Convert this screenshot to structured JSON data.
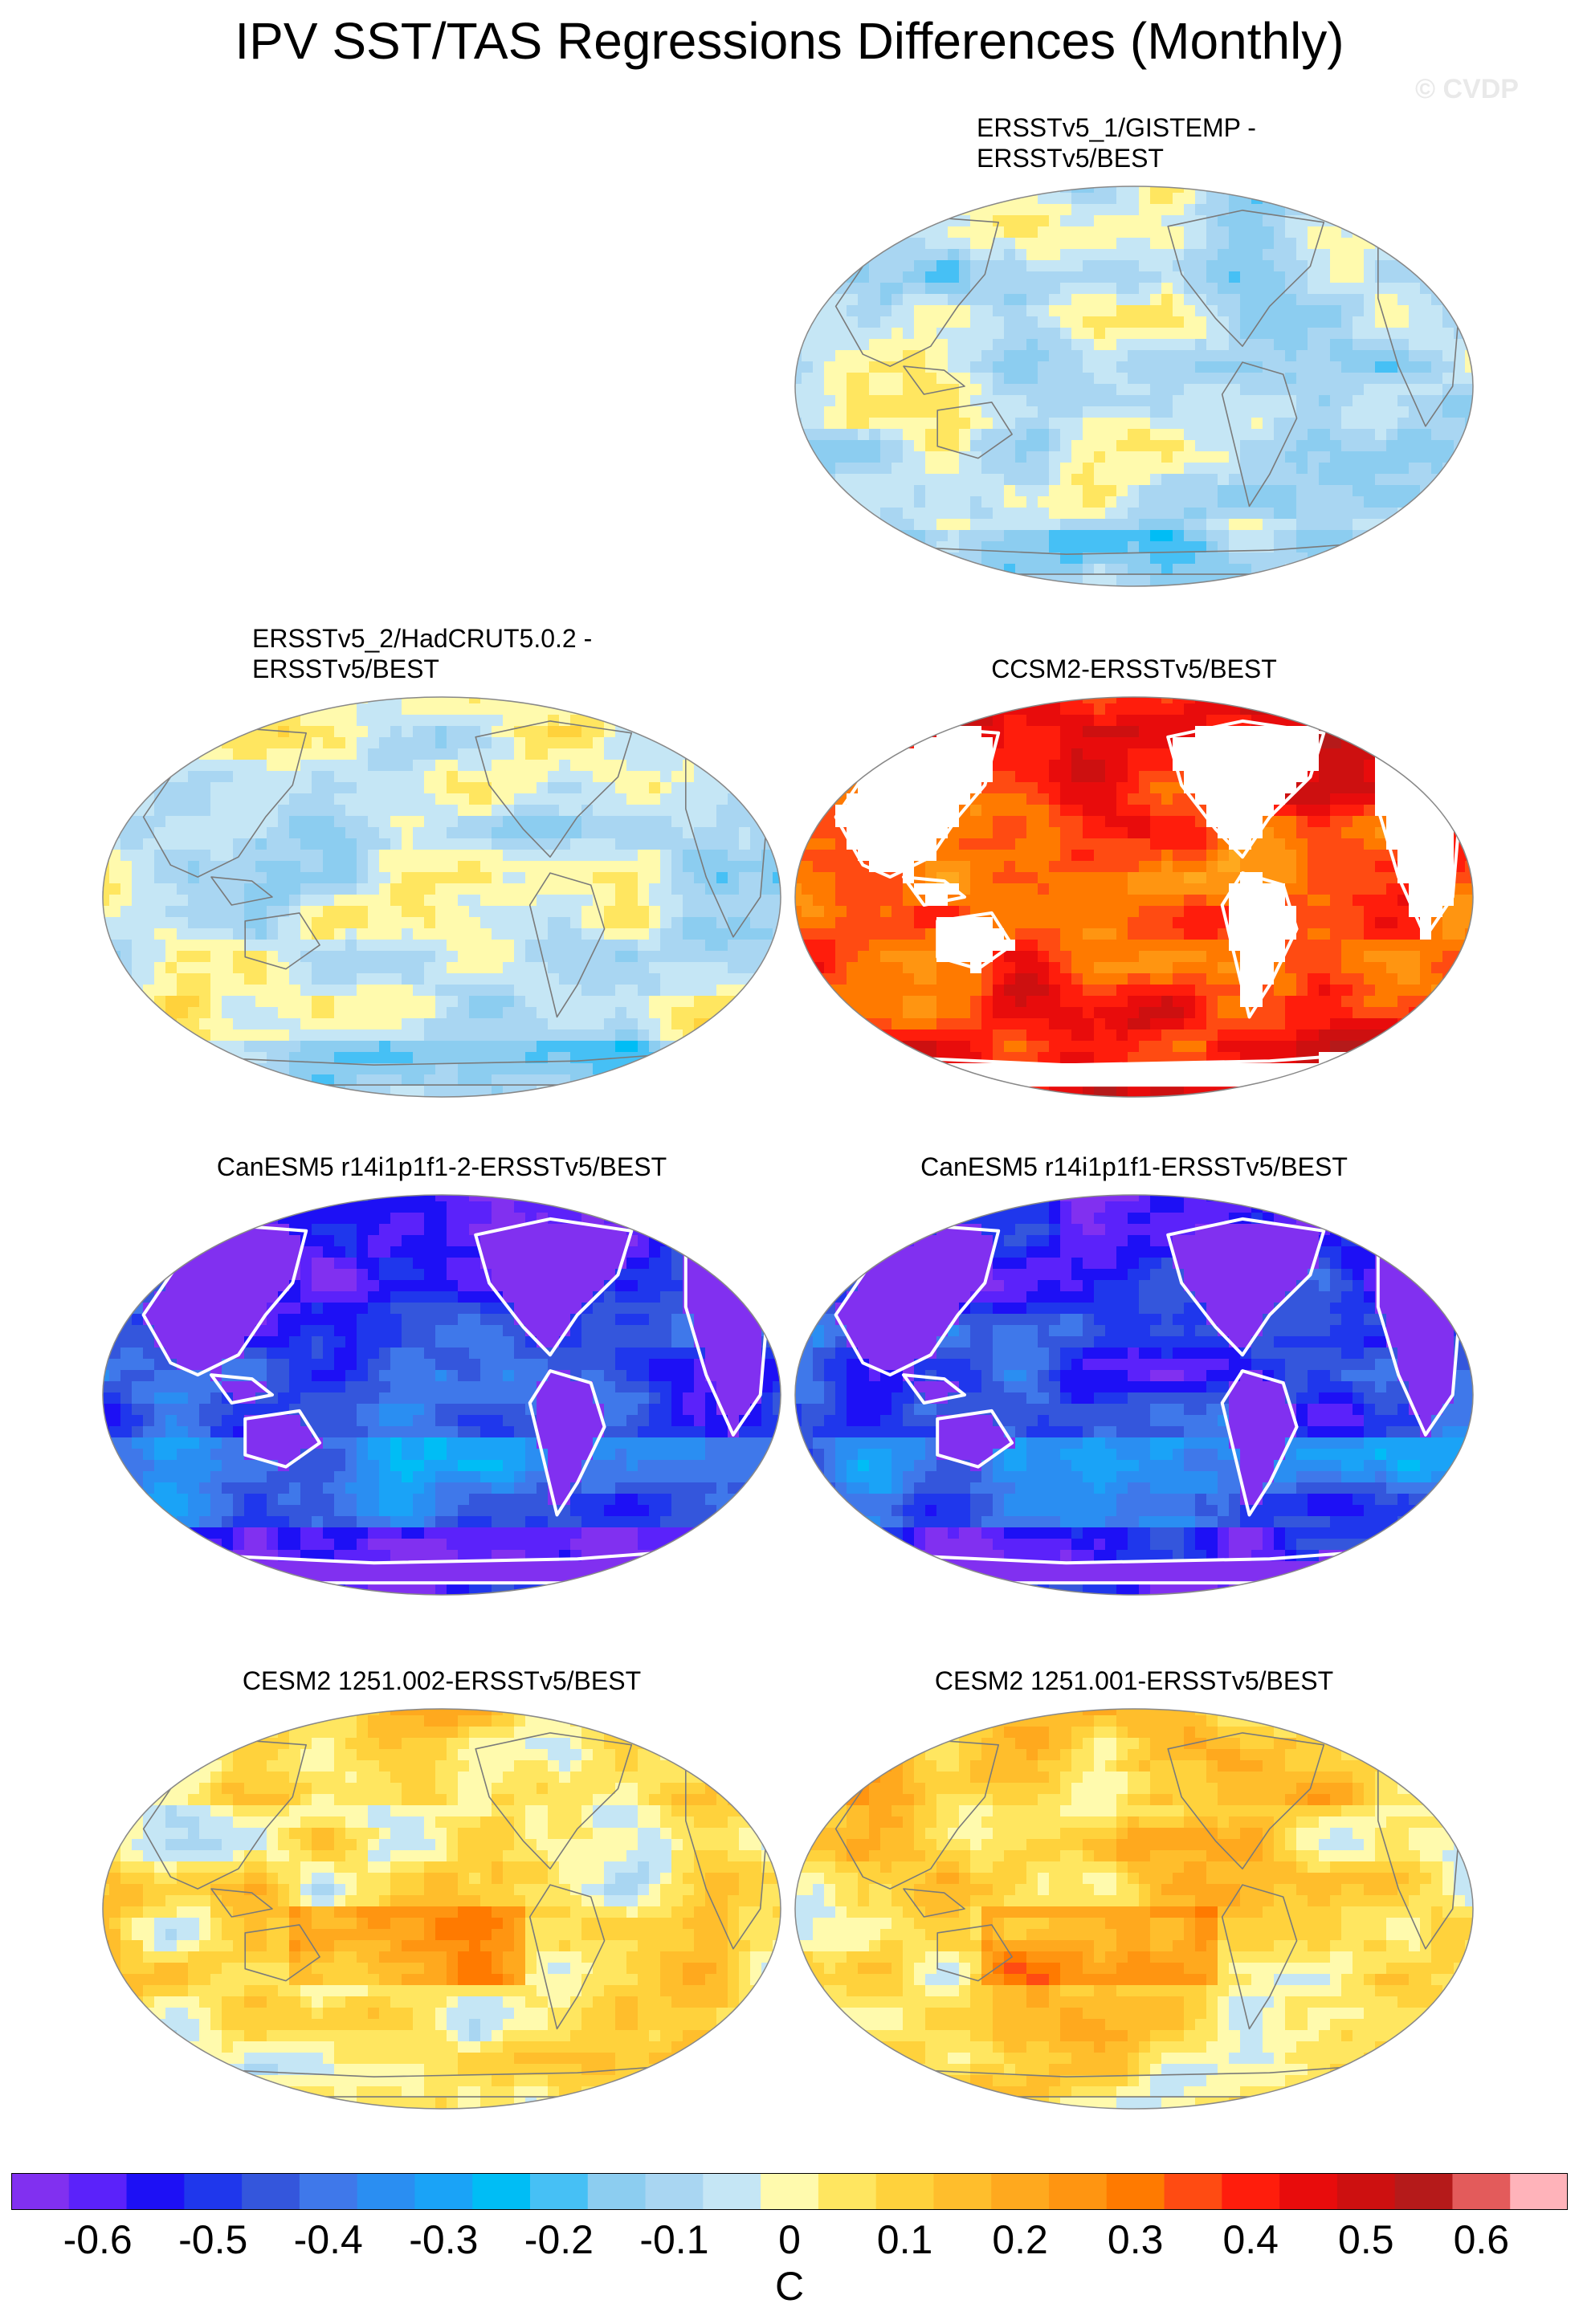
{
  "title": "IPV SST/TAS Regressions Differences (Monthly)",
  "copyright": "© CVDP",
  "colors": {
    "land_outline": "#7a7a7a",
    "mask_outline": "#ffffff",
    "globe_border": "#888888"
  },
  "panels": [
    {
      "id": "p1",
      "label_line1": "ERSSTv5_1/GISTEMP -",
      "label_line2": "ERSSTv5/BEST",
      "style": "mixed-cool",
      "warm_bias": -0.02,
      "masked": false
    },
    {
      "id": "p2",
      "label_line1": "ERSSTv5_2/HadCRUT5.0.2 -",
      "label_line2": "ERSSTv5/BEST",
      "style": "mixed-cool",
      "warm_bias": 0.0,
      "masked": false
    },
    {
      "id": "p3",
      "label_line1": "CCSM2-ERSSTv5/BEST",
      "label_line2": "",
      "style": "hot",
      "warm_bias": 0.3,
      "masked": true
    },
    {
      "id": "p4",
      "label_line1": "CanESM5 r14i1p1f1-2-ERSSTv5/BEST",
      "label_line2": "",
      "style": "cold",
      "warm_bias": -0.45,
      "masked": true
    },
    {
      "id": "p5",
      "label_line1": "CanESM5 r14i1p1f1-ERSSTv5/BEST",
      "label_line2": "",
      "style": "cold",
      "warm_bias": -0.45,
      "masked": true
    },
    {
      "id": "p6",
      "label_line1": "CESM2 1251.002-ERSSTv5/BEST",
      "label_line2": "",
      "style": "mixed-warm",
      "warm_bias": 0.04,
      "masked": false
    },
    {
      "id": "p7",
      "label_line1": "CESM2 1251.001-ERSSTv5/BEST",
      "label_line2": "",
      "style": "mixed-warm",
      "warm_bias": 0.07,
      "masked": false
    }
  ],
  "chart_data": {
    "type": "heatmap",
    "title": "IPV SST/TAS Regressions Differences (Monthly)",
    "projection": "Robinson (global)",
    "colorbar": {
      "units": "C",
      "levels": [
        -0.65,
        -0.6,
        -0.55,
        -0.5,
        -0.45,
        -0.4,
        -0.35,
        -0.3,
        -0.25,
        -0.2,
        -0.15,
        -0.1,
        -0.05,
        0,
        0.05,
        0.1,
        0.15,
        0.2,
        0.25,
        0.3,
        0.35,
        0.4,
        0.45,
        0.5,
        0.55,
        0.6,
        0.65
      ],
      "tick_labels": [
        "-0.6",
        "-0.5",
        "-0.4",
        "-0.3",
        "-0.2",
        "-0.1",
        "0",
        "0.1",
        "0.2",
        "0.3",
        "0.4",
        "0.5",
        "0.6"
      ],
      "tick_values": [
        -0.6,
        -0.5,
        -0.4,
        -0.3,
        -0.2,
        -0.1,
        0,
        0.1,
        0.2,
        0.3,
        0.4,
        0.5,
        0.6
      ],
      "colors": [
        "#8130f0",
        "#5b22fa",
        "#1d10f5",
        "#1f37ec",
        "#3456dc",
        "#3f78ea",
        "#2a8ef2",
        "#1aa3f7",
        "#00bdf5",
        "#46c0f5",
        "#8ccdf0",
        "#a9d6f2",
        "#c5e6f5",
        "#fffaad",
        "#ffe660",
        "#ffd23c",
        "#ffbe2c",
        "#ffa91e",
        "#ff9511",
        "#ff7a00",
        "#ff4b12",
        "#ff1d0c",
        "#e80c0c",
        "#cd1010",
        "#b51a1a",
        "#e35b5b",
        "#ffb3ba"
      ]
    }
  }
}
